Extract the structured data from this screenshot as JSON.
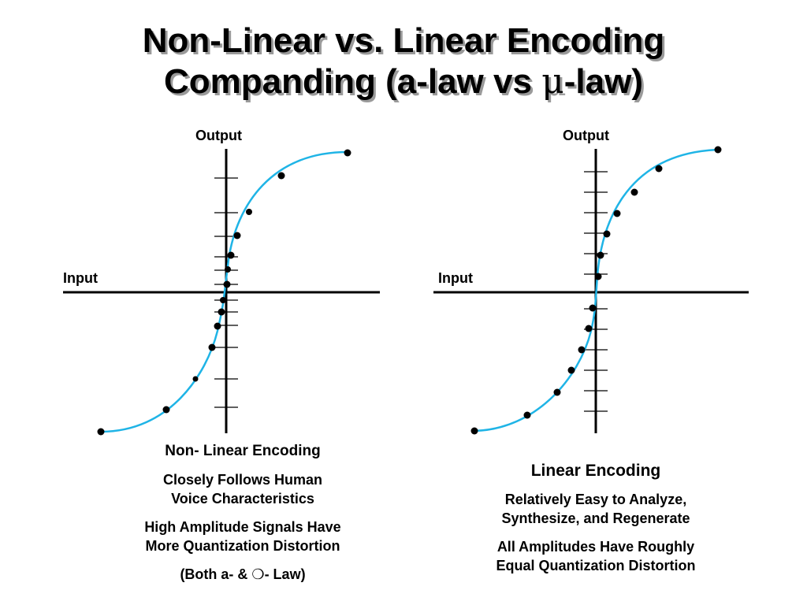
{
  "title": {
    "line1": "Non-Linear vs. Linear Encoding",
    "line2_prefix": "Companding (a-law vs ",
    "line2_symbol": "μ",
    "line2_suffix": "-law)"
  },
  "left_panel": {
    "output_label": "Output",
    "input_label": "Input",
    "heading": "Non- Linear Encoding",
    "text1_line1": "Closely Follows Human",
    "text1_line2": "Voice Characteristics",
    "text2_line1": "High Amplitude Signals Have",
    "text2_line2": "More Quantization Distortion",
    "note_prefix": "(Both a- & ",
    "note_symbol": "❍",
    "note_suffix": "- Law)"
  },
  "right_panel": {
    "output_label": "Output",
    "input_label": "Input",
    "heading": "Linear Encoding",
    "text1_line1": "Relatively Easy to Analyze,",
    "text1_line2": "Synthesize, and Regenerate",
    "text2_line1": "All Amplitudes Have Roughly",
    "text2_line2": "Equal Quantization Distortion"
  },
  "colors": {
    "curve": "#1fb4e6",
    "axis": "#000000",
    "title_shadow": "#9a9a9a"
  }
}
